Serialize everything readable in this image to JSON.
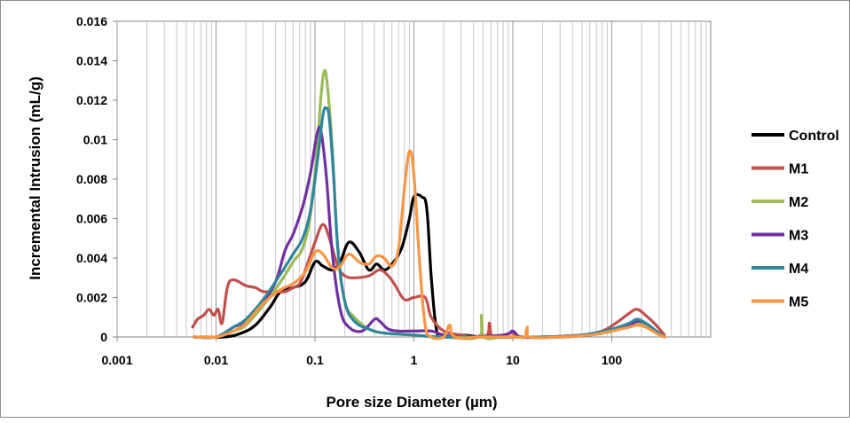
{
  "chart_data": {
    "type": "line",
    "title": "",
    "xlabel": "Pore size Diameter (µm)",
    "ylabel": "Incremental Intrusion (mL/g)",
    "x_scale": "log",
    "xlim": [
      0.001,
      1000
    ],
    "ylim": [
      0,
      0.016
    ],
    "x_ticks": [
      0.001,
      0.01,
      0.1,
      1,
      10,
      100
    ],
    "x_tick_labels": [
      "0.001",
      "0.01",
      "0.1",
      "1",
      "10",
      "100"
    ],
    "y_ticks": [
      0,
      0.002,
      0.004,
      0.006,
      0.008,
      0.01,
      0.012,
      0.014,
      0.016
    ],
    "y_tick_labels": [
      "0",
      "0.002",
      "0.004",
      "0.006",
      "0.008",
      "0.01",
      "0.012",
      "0.014",
      "0.016"
    ],
    "grid": "vertical minor log gridlines",
    "legend_position": "right",
    "series": [
      {
        "name": "Control",
        "color": "#000000",
        "points": [
          [
            0.006,
            0
          ],
          [
            0.012,
            0
          ],
          [
            0.018,
            0.0002
          ],
          [
            0.025,
            0.0006
          ],
          [
            0.035,
            0.0015
          ],
          [
            0.045,
            0.0023
          ],
          [
            0.06,
            0.0025
          ],
          [
            0.08,
            0.0028
          ],
          [
            0.1,
            0.0038
          ],
          [
            0.12,
            0.0036
          ],
          [
            0.15,
            0.0034
          ],
          [
            0.18,
            0.0038
          ],
          [
            0.22,
            0.0048
          ],
          [
            0.28,
            0.0043
          ],
          [
            0.35,
            0.0034
          ],
          [
            0.42,
            0.0037
          ],
          [
            0.5,
            0.0034
          ],
          [
            0.6,
            0.0037
          ],
          [
            0.75,
            0.0045
          ],
          [
            0.9,
            0.006
          ],
          [
            1.0,
            0.0071
          ],
          [
            1.2,
            0.0071
          ],
          [
            1.35,
            0.0065
          ],
          [
            1.5,
            0.003
          ],
          [
            1.7,
            0.0003
          ],
          [
            2.0,
            0
          ],
          [
            3.0,
            0.0001
          ],
          [
            5,
            0
          ],
          [
            10,
            0
          ],
          [
            30,
            0
          ],
          [
            60,
            0.0001
          ],
          [
            100,
            0.0003
          ],
          [
            150,
            0.0006
          ],
          [
            180,
            0.0007
          ],
          [
            220,
            0.0006
          ],
          [
            280,
            0.0003
          ],
          [
            340,
            0
          ]
        ]
      },
      {
        "name": "M1",
        "color": "#c0504d",
        "points": [
          [
            0.0058,
            0.0005
          ],
          [
            0.0065,
            0.0009
          ],
          [
            0.0075,
            0.0011
          ],
          [
            0.0085,
            0.0014
          ],
          [
            0.0095,
            0.0011
          ],
          [
            0.0105,
            0.0014
          ],
          [
            0.0115,
            0.0007
          ],
          [
            0.013,
            0.0025
          ],
          [
            0.015,
            0.0029
          ],
          [
            0.02,
            0.0026
          ],
          [
            0.025,
            0.0025
          ],
          [
            0.03,
            0.0023
          ],
          [
            0.04,
            0.0023
          ],
          [
            0.05,
            0.0023
          ],
          [
            0.06,
            0.0025
          ],
          [
            0.07,
            0.0027
          ],
          [
            0.08,
            0.0034
          ],
          [
            0.1,
            0.0048
          ],
          [
            0.12,
            0.0057
          ],
          [
            0.14,
            0.005
          ],
          [
            0.17,
            0.0036
          ],
          [
            0.2,
            0.0031
          ],
          [
            0.25,
            0.003
          ],
          [
            0.35,
            0.0031
          ],
          [
            0.45,
            0.0034
          ],
          [
            0.55,
            0.0031
          ],
          [
            0.65,
            0.0026
          ],
          [
            0.8,
            0.0019
          ],
          [
            1.0,
            0.002
          ],
          [
            1.3,
            0.002
          ],
          [
            1.5,
            0.001
          ],
          [
            2,
            0.0003
          ],
          [
            3,
            0.0001
          ],
          [
            4,
            0
          ],
          [
            5.5,
            0.0001
          ],
          [
            5.8,
            0.0007
          ],
          [
            6.2,
            0
          ],
          [
            8,
            0.0001
          ],
          [
            10,
            0.0002
          ],
          [
            12,
            0
          ],
          [
            20,
            0
          ],
          [
            50,
            0.0001
          ],
          [
            80,
            0.0003
          ],
          [
            110,
            0.0007
          ],
          [
            150,
            0.0012
          ],
          [
            180,
            0.0014
          ],
          [
            220,
            0.0011
          ],
          [
            280,
            0.0006
          ],
          [
            340,
            0.0001
          ]
        ]
      },
      {
        "name": "M2",
        "color": "#9bbb59",
        "points": [
          [
            0.006,
            0
          ],
          [
            0.01,
            0
          ],
          [
            0.015,
            0.0003
          ],
          [
            0.02,
            0.0006
          ],
          [
            0.03,
            0.0016
          ],
          [
            0.045,
            0.0028
          ],
          [
            0.06,
            0.0038
          ],
          [
            0.075,
            0.0045
          ],
          [
            0.09,
            0.0062
          ],
          [
            0.105,
            0.0095
          ],
          [
            0.115,
            0.0122
          ],
          [
            0.125,
            0.0135
          ],
          [
            0.135,
            0.0125
          ],
          [
            0.15,
            0.0095
          ],
          [
            0.17,
            0.0045
          ],
          [
            0.2,
            0.0018
          ],
          [
            0.25,
            0.001
          ],
          [
            0.35,
            0.0004
          ],
          [
            0.5,
            0.0002
          ],
          [
            1,
            0.0001
          ],
          [
            2,
            0
          ],
          [
            4.5,
            0
          ],
          [
            4.8,
            0.0011
          ],
          [
            5.1,
            0
          ],
          [
            8,
            0
          ],
          [
            20,
            0
          ],
          [
            50,
            0.0001
          ],
          [
            100,
            0.0003
          ],
          [
            150,
            0.0006
          ],
          [
            180,
            0.0007
          ],
          [
            220,
            0.0006
          ],
          [
            280,
            0.0003
          ],
          [
            340,
            0
          ]
        ]
      },
      {
        "name": "M3",
        "color": "#7030a0",
        "points": [
          [
            0.006,
            0
          ],
          [
            0.01,
            0
          ],
          [
            0.015,
            0.0005
          ],
          [
            0.02,
            0.0008
          ],
          [
            0.03,
            0.0018
          ],
          [
            0.04,
            0.0028
          ],
          [
            0.05,
            0.0044
          ],
          [
            0.06,
            0.0052
          ],
          [
            0.075,
            0.0066
          ],
          [
            0.09,
            0.0083
          ],
          [
            0.105,
            0.0103
          ],
          [
            0.115,
            0.0104
          ],
          [
            0.13,
            0.0082
          ],
          [
            0.15,
            0.0042
          ],
          [
            0.18,
            0.0014
          ],
          [
            0.22,
            0.0005
          ],
          [
            0.3,
            0.0003
          ],
          [
            0.4,
            0.0009
          ],
          [
            0.45,
            0.0008
          ],
          [
            0.55,
            0.0004
          ],
          [
            0.7,
            0.0003
          ],
          [
            1,
            0.0003
          ],
          [
            1.5,
            0.0003
          ],
          [
            2,
            0.0001
          ],
          [
            3,
            0
          ],
          [
            8,
            0.0001
          ],
          [
            10,
            0.0003
          ],
          [
            12,
            0
          ],
          [
            20,
            0
          ],
          [
            50,
            0.0001
          ],
          [
            100,
            0.0003
          ],
          [
            150,
            0.0006
          ],
          [
            180,
            0.0008
          ],
          [
            220,
            0.0007
          ],
          [
            280,
            0.0003
          ],
          [
            340,
            0
          ]
        ]
      },
      {
        "name": "M4",
        "color": "#31859c",
        "points": [
          [
            0.006,
            0
          ],
          [
            0.01,
            0
          ],
          [
            0.015,
            0.0005
          ],
          [
            0.02,
            0.0009
          ],
          [
            0.03,
            0.0019
          ],
          [
            0.045,
            0.0032
          ],
          [
            0.06,
            0.0042
          ],
          [
            0.075,
            0.005
          ],
          [
            0.09,
            0.0064
          ],
          [
            0.105,
            0.0088
          ],
          [
            0.12,
            0.0112
          ],
          [
            0.13,
            0.0116
          ],
          [
            0.14,
            0.011
          ],
          [
            0.155,
            0.008
          ],
          [
            0.17,
            0.0045
          ],
          [
            0.2,
            0.0018
          ],
          [
            0.25,
            0.0008
          ],
          [
            0.35,
            0.0004
          ],
          [
            0.5,
            0.0002
          ],
          [
            1,
            0.0001
          ],
          [
            1.8,
            0
          ],
          [
            5,
            0
          ],
          [
            20,
            0
          ],
          [
            50,
            0.0001
          ],
          [
            100,
            0.0004
          ],
          [
            150,
            0.0007
          ],
          [
            180,
            0.0009
          ],
          [
            220,
            0.0007
          ],
          [
            280,
            0.0003
          ],
          [
            340,
            0
          ]
        ]
      },
      {
        "name": "M5",
        "color": "#f79646",
        "points": [
          [
            0.006,
            0
          ],
          [
            0.01,
            0
          ],
          [
            0.015,
            0.0003
          ],
          [
            0.02,
            0.0007
          ],
          [
            0.03,
            0.0017
          ],
          [
            0.045,
            0.0024
          ],
          [
            0.06,
            0.0027
          ],
          [
            0.08,
            0.0033
          ],
          [
            0.1,
            0.0043
          ],
          [
            0.12,
            0.0042
          ],
          [
            0.15,
            0.0035
          ],
          [
            0.18,
            0.0036
          ],
          [
            0.22,
            0.0042
          ],
          [
            0.28,
            0.0038
          ],
          [
            0.35,
            0.0037
          ],
          [
            0.42,
            0.0041
          ],
          [
            0.5,
            0.004
          ],
          [
            0.6,
            0.0036
          ],
          [
            0.7,
            0.0045
          ],
          [
            0.8,
            0.0075
          ],
          [
            0.9,
            0.0094
          ],
          [
            1.0,
            0.0082
          ],
          [
            1.15,
            0.0035
          ],
          [
            1.3,
            0.0006
          ],
          [
            1.5,
            0
          ],
          [
            2.0,
            0
          ],
          [
            2.3,
            0.0006
          ],
          [
            2.6,
            0
          ],
          [
            5,
            0
          ],
          [
            10,
            0
          ],
          [
            13.5,
            0
          ],
          [
            14,
            0.0005
          ],
          [
            14.5,
            0
          ],
          [
            30,
            0
          ],
          [
            60,
            0.0001
          ],
          [
            100,
            0.0003
          ],
          [
            150,
            0.0005
          ],
          [
            180,
            0.0006
          ],
          [
            220,
            0.0005
          ],
          [
            280,
            0.0002
          ],
          [
            340,
            0
          ]
        ]
      }
    ]
  }
}
